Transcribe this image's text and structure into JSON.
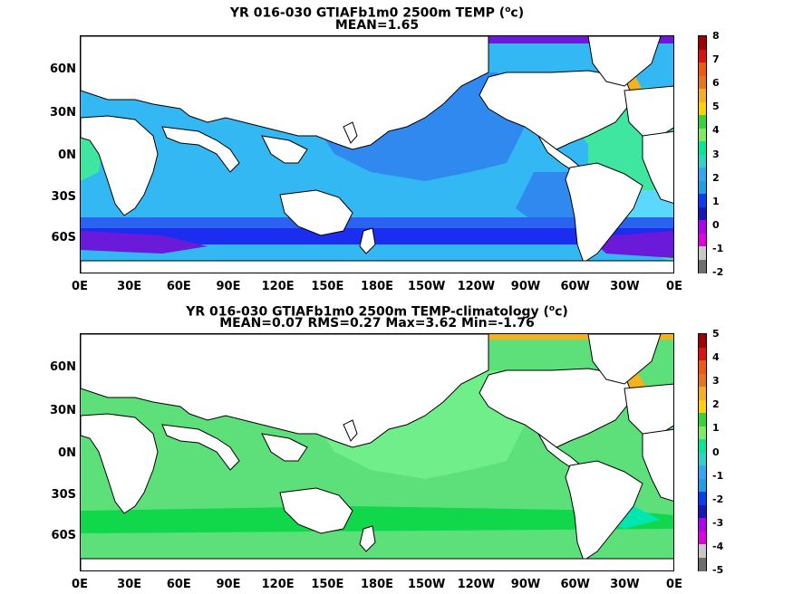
{
  "panels": [
    {
      "title_main": "YR 016-030 GTIAFb1m0 2500m TEMP (",
      "title_sup": "o",
      "title_tail": "c)",
      "subtitle": "MEAN=1.65",
      "lat_labels": [
        "60N",
        "30N",
        "0N",
        "30S",
        "60S"
      ],
      "lon_labels": [
        "0E",
        "30E",
        "60E",
        "90E",
        "120E",
        "150E",
        "180E",
        "150W",
        "120W",
        "90W",
        "60W",
        "30W",
        "0E"
      ],
      "colorbar_labels": [
        "8",
        "7",
        "6",
        "5",
        "4",
        "3",
        "2",
        "1",
        "0",
        "-1",
        "-2"
      ],
      "colorbar_colors": [
        "#a00000",
        "#e01010",
        "#f05a0f",
        "#e8761e",
        "#f2b022",
        "#ffd100",
        "#37d437",
        "#80ea62",
        "#00e898",
        "#2bd4c4",
        "#33a8f4",
        "#1fa0e6",
        "#0a3ff0",
        "#1818b8",
        "#b000f0",
        "#e000e0",
        "#c8c8c8",
        "#6e6e6e"
      ]
    },
    {
      "title_main": "YR 016-030 GTIAFb1m0 2500m TEMP-climatology (",
      "title_sup": "o",
      "title_tail": "c)",
      "subtitle": "MEAN=0.07   RMS=0.27   Max=3.62   Min=-1.76",
      "lat_labels": [
        "60N",
        "30N",
        "0N",
        "30S",
        "60S"
      ],
      "lon_labels": [
        "0E",
        "30E",
        "60E",
        "90E",
        "120E",
        "150E",
        "180E",
        "150W",
        "120W",
        "90W",
        "60W",
        "30W",
        "0E"
      ],
      "colorbar_labels": [
        "5",
        "4",
        "3",
        "2",
        "1",
        "0",
        "-1",
        "-2",
        "-3",
        "-4",
        "-5"
      ],
      "colorbar_colors": [
        "#a00000",
        "#e01010",
        "#f05a0f",
        "#e8761e",
        "#f2b022",
        "#ffd100",
        "#37d437",
        "#80ea62",
        "#00e898",
        "#2bd4c4",
        "#33a8f4",
        "#1fa0e6",
        "#0a3ff0",
        "#1818b8",
        "#b000f0",
        "#e000e0",
        "#c8c8c8",
        "#6e6e6e"
      ]
    }
  ],
  "fills": {
    "p1_ocean_main": "#33b8f4",
    "p1_ocean_deep": "#2f89ee",
    "p1_atlantic": "#3fe6a0",
    "p1_atlantic_s": "#5ad8ff",
    "p1_southern1": "#2a63f0",
    "p1_southern2": "#1b2ef0",
    "p1_southern3": "#6a1ad8",
    "p1_nordic_warm": "#f3b21e",
    "p2_ocean_main": "#5de07a",
    "p2_ocean_light": "#70ee8a",
    "p2_green_strong": "#10d84a",
    "p2_cyan": "#00e6b0",
    "land": "#ffffff",
    "coast": "#000000"
  }
}
